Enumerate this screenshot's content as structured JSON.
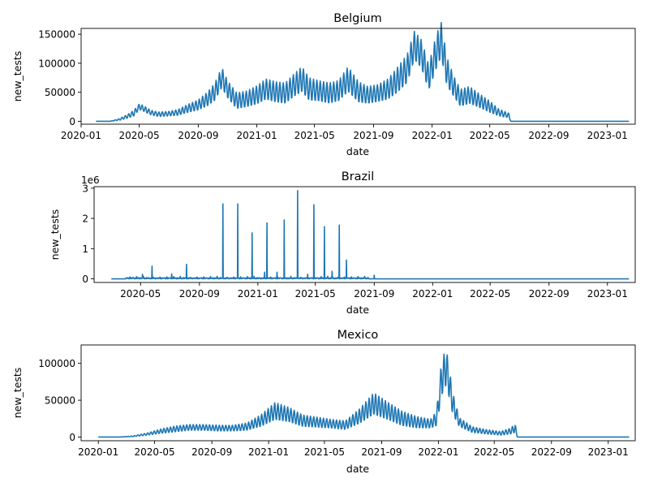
{
  "figure": {
    "background": "#ffffff",
    "line_color": "#1f77b4"
  },
  "chart_data": [
    {
      "type": "line",
      "title": "Belgium",
      "xlabel": "date",
      "ylabel": "new_tests",
      "y_offset_label": "",
      "x_range": [
        "2020-01-01",
        "2023-02-28"
      ],
      "y_range": [
        -5000,
        160000
      ],
      "x_ticks": [
        "2020-01",
        "2020-05",
        "2020-09",
        "2021-01",
        "2021-05",
        "2021-09",
        "2022-01",
        "2022-05",
        "2022-09",
        "2023-01"
      ],
      "y_ticks": [
        0,
        50000,
        100000,
        150000
      ],
      "y_tick_labels": [
        "0",
        "50000",
        "100000",
        "150000"
      ],
      "series": [
        {
          "x": [
            "2020-02-01",
            "2020-03-01",
            "2020-03-20",
            "2020-04-05",
            "2020-04-20",
            "2020-05-01",
            "2020-05-10",
            "2020-05-25",
            "2020-06-10",
            "2020-07-01",
            "2020-07-20",
            "2020-08-10",
            "2020-09-01",
            "2020-09-20",
            "2020-10-05",
            "2020-10-20",
            "2020-11-01",
            "2020-11-20",
            "2020-12-10",
            "2021-01-01",
            "2021-01-20",
            "2021-02-10",
            "2021-03-01",
            "2021-03-20",
            "2021-04-05",
            "2021-04-20",
            "2021-05-10",
            "2021-06-01",
            "2021-06-20",
            "2021-07-10",
            "2021-08-01",
            "2021-08-20",
            "2021-09-10",
            "2021-10-01",
            "2021-10-20",
            "2021-11-10",
            "2021-11-25",
            "2021-12-10",
            "2021-12-25",
            "2022-01-10",
            "2022-01-20",
            "2022-02-01",
            "2022-02-15",
            "2022-03-01",
            "2022-03-20",
            "2022-04-10",
            "2022-05-01",
            "2022-05-20",
            "2022-06-01",
            "2022-06-10",
            "2022-06-14",
            "2022-07-01",
            "2022-09-01",
            "2022-12-01",
            "2023-02-15"
          ],
          "y": [
            0,
            0,
            3000,
            8000,
            14000,
            25000,
            22000,
            15000,
            12000,
            13000,
            15000,
            22000,
            28000,
            38000,
            50000,
            75000,
            55000,
            35000,
            38000,
            45000,
            55000,
            50000,
            48000,
            62000,
            72000,
            55000,
            52000,
            48000,
            52000,
            72000,
            50000,
            45000,
            48000,
            55000,
            70000,
            90000,
            130000,
            115000,
            75000,
            120000,
            140000,
            85000,
            60000,
            40000,
            45000,
            35000,
            25000,
            15000,
            12000,
            10000,
            0,
            0,
            0,
            0,
            0
          ],
          "weekly_oscillation_amplitude": [
            0,
            0,
            1500,
            3000,
            5000,
            5000,
            5000,
            4000,
            4000,
            4000,
            5000,
            7000,
            9000,
            12000,
            15000,
            18000,
            15000,
            14000,
            14000,
            16000,
            18000,
            18000,
            18000,
            20000,
            22000,
            20000,
            18000,
            18000,
            18000,
            22000,
            18000,
            15000,
            15000,
            18000,
            22000,
            25000,
            25000,
            25000,
            22000,
            30000,
            30000,
            25000,
            18000,
            15000,
            15000,
            12000,
            10000,
            6000,
            5000,
            4000,
            0,
            0,
            0,
            0,
            0
          ]
        }
      ]
    },
    {
      "type": "line",
      "title": "Brazil",
      "xlabel": "date",
      "ylabel": "new_tests",
      "y_offset_label": "1e6",
      "x_range": [
        "2020-01-25",
        "2023-02-28"
      ],
      "y_range": [
        -0.12,
        3.05
      ],
      "x_ticks": [
        "2020-05",
        "2020-09",
        "2021-01",
        "2021-05",
        "2021-09",
        "2022-01",
        "2022-05",
        "2022-09",
        "2023-01"
      ],
      "y_ticks": [
        0,
        1,
        2,
        3
      ],
      "y_tick_labels": [
        "0",
        "1",
        "2",
        "3"
      ],
      "series": [
        {
          "x": [
            "2020-03-01",
            "2023-02-15"
          ],
          "y": [
            0,
            0
          ],
          "noise_range": [
            "2020-04-01",
            "2021-08-20"
          ],
          "spikes": [
            {
              "x": "2020-04-15",
              "y": 0.05
            },
            {
              "x": "2020-05-05",
              "y": 0.15
            },
            {
              "x": "2020-05-25",
              "y": 0.42
            },
            {
              "x": "2020-07-05",
              "y": 0.16
            },
            {
              "x": "2020-08-05",
              "y": 0.48
            },
            {
              "x": "2020-10-20",
              "y": 2.48
            },
            {
              "x": "2020-11-20",
              "y": 2.48
            },
            {
              "x": "2020-12-20",
              "y": 1.52
            },
            {
              "x": "2021-01-15",
              "y": 0.22
            },
            {
              "x": "2021-01-20",
              "y": 1.85
            },
            {
              "x": "2021-02-10",
              "y": 0.22
            },
            {
              "x": "2021-02-25",
              "y": 1.95
            },
            {
              "x": "2021-03-25",
              "y": 2.92
            },
            {
              "x": "2021-04-15",
              "y": 0.15
            },
            {
              "x": "2021-04-28",
              "y": 2.45
            },
            {
              "x": "2021-05-20",
              "y": 1.73
            },
            {
              "x": "2021-06-05",
              "y": 0.25
            },
            {
              "x": "2021-06-20",
              "y": 1.78
            },
            {
              "x": "2021-07-05",
              "y": 0.62
            },
            {
              "x": "2021-09-01",
              "y": 0.12
            }
          ]
        }
      ]
    },
    {
      "type": "line",
      "title": "Mexico",
      "xlabel": "date",
      "ylabel": "new_tests",
      "y_offset_label": "",
      "x_range": [
        "2019-11-25",
        "2023-02-28"
      ],
      "y_range": [
        -5000,
        125000
      ],
      "x_ticks": [
        "2020-01",
        "2020-05",
        "2020-09",
        "2021-01",
        "2021-05",
        "2021-09",
        "2022-01",
        "2022-05",
        "2022-09",
        "2023-01"
      ],
      "y_ticks": [
        0,
        50000,
        100000
      ],
      "y_tick_labels": [
        "0",
        "50000",
        "100000"
      ],
      "series": [
        {
          "x": [
            "2020-01-01",
            "2020-02-15",
            "2020-03-15",
            "2020-04-15",
            "2020-05-15",
            "2020-06-15",
            "2020-07-15",
            "2020-08-15",
            "2020-09-15",
            "2020-10-15",
            "2020-11-15",
            "2020-12-15",
            "2021-01-15",
            "2021-02-15",
            "2021-03-15",
            "2021-04-15",
            "2021-05-15",
            "2021-06-15",
            "2021-07-15",
            "2021-08-15",
            "2021-09-15",
            "2021-10-15",
            "2021-11-15",
            "2021-12-15",
            "2021-12-28",
            "2022-01-08",
            "2022-01-18",
            "2022-02-01",
            "2022-02-15",
            "2022-03-15",
            "2022-04-15",
            "2022-05-15",
            "2022-06-05",
            "2022-06-15",
            "2022-06-20",
            "2022-09-01",
            "2022-12-01",
            "2023-02-15"
          ],
          "y": [
            0,
            0,
            1000,
            4000,
            8000,
            11000,
            13000,
            13000,
            12000,
            12000,
            14000,
            22000,
            35000,
            30000,
            22000,
            20000,
            18000,
            16000,
            28000,
            45000,
            35000,
            25000,
            20000,
            18000,
            25000,
            80000,
            95000,
            45000,
            20000,
            10000,
            7000,
            5000,
            8000,
            12000,
            0,
            0,
            0,
            0
          ],
          "weekly_oscillation_amplitude": [
            0,
            0,
            500,
            1500,
            3000,
            4000,
            4000,
            4000,
            4000,
            4000,
            5000,
            8000,
            12000,
            10000,
            8000,
            7000,
            6000,
            6000,
            10000,
            15000,
            12000,
            10000,
            8000,
            6000,
            10000,
            25000,
            25000,
            15000,
            6000,
            4000,
            3000,
            2500,
            4000,
            6000,
            0,
            0,
            0,
            0
          ]
        }
      ]
    }
  ]
}
